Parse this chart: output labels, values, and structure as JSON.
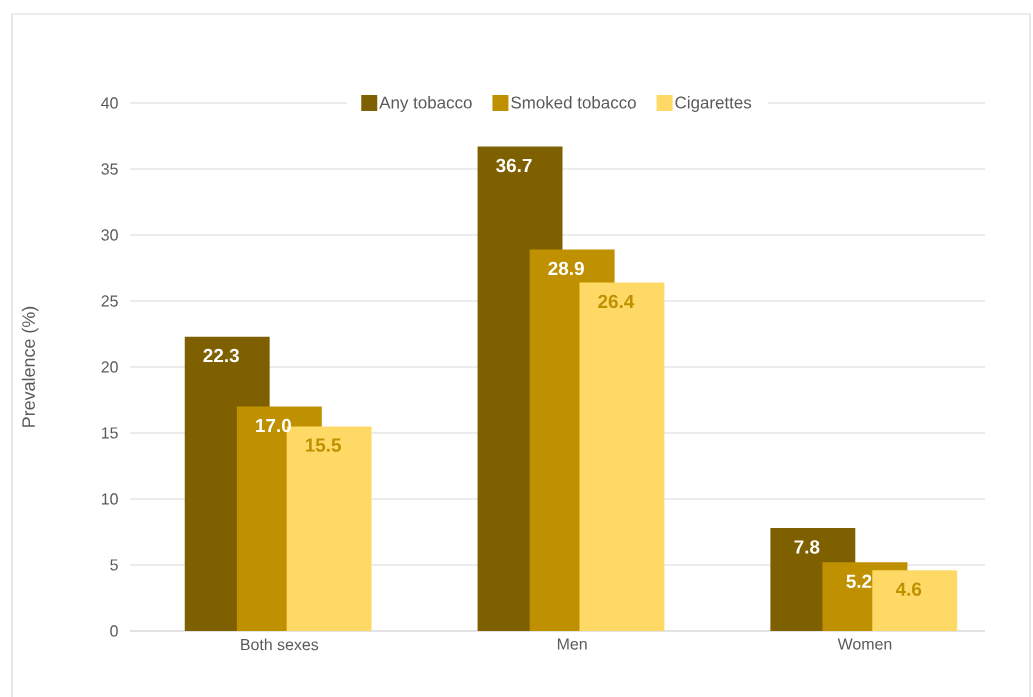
{
  "chart_data": {
    "type": "bar",
    "ylabel": "Prevalence (%)",
    "categories": [
      "Both sexes",
      "Men",
      "Women"
    ],
    "series": [
      {
        "name": "Any tobacco",
        "color": "#7f6000",
        "values": [
          22.3,
          36.7,
          7.8
        ],
        "value_labels": [
          "22.3",
          "36.7",
          "7.8"
        ]
      },
      {
        "name": "Smoked tobacco",
        "color": "#bf9000",
        "values": [
          17.0,
          28.9,
          5.2
        ],
        "value_labels": [
          "17.0",
          "28.9",
          "5.2"
        ]
      },
      {
        "name": "Cigarettes",
        "color": "#ffd966",
        "values": [
          15.5,
          26.4,
          4.6
        ],
        "value_labels": [
          "15.5",
          "26.4",
          "4.6"
        ]
      }
    ],
    "ylim": [
      0,
      40
    ],
    "yticks": [
      0,
      5,
      10,
      15,
      20,
      25,
      30,
      35,
      40
    ],
    "grid": "y",
    "legend": "top"
  }
}
